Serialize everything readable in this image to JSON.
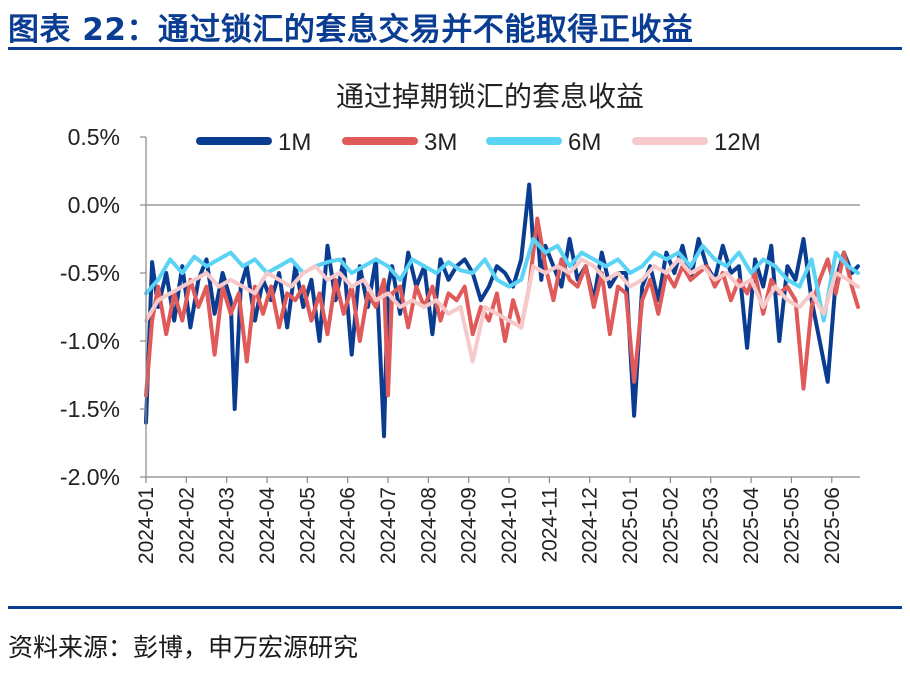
{
  "figure": {
    "title": "图表 22：通过锁汇的套息交易并不能取得正收益",
    "source": "资料来源：彭博，申万宏源研究"
  },
  "chart_data": {
    "type": "line",
    "title": "通过掉期锁汇的套息收益",
    "xlabel": "",
    "ylabel": "",
    "ylim": [
      -2.0,
      0.5
    ],
    "yticks": [
      0.5,
      0.0,
      -0.5,
      -1.0,
      -1.5,
      -2.0
    ],
    "ytick_labels": [
      "0.5%",
      "0.0%",
      "-0.5%",
      "-1.0%",
      "-1.5%",
      "-2.0%"
    ],
    "x_categories": [
      "2024-01",
      "2024-02",
      "2024-03",
      "2024-04",
      "2024-05",
      "2024-06",
      "2024-07",
      "2024-08",
      "2024-09",
      "2024-10",
      "2024-11",
      "2024-12",
      "2025-01",
      "2025-02",
      "2025-03",
      "2025-04",
      "2025-05",
      "2025-06"
    ],
    "xlim_months": [
      0,
      17.7
    ],
    "legend_position": "top",
    "series": [
      {
        "name": "1M",
        "color": "#0a3d91",
        "x": [
          0,
          0.15,
          0.3,
          0.5,
          0.7,
          0.9,
          1.1,
          1.3,
          1.5,
          1.7,
          1.9,
          2.1,
          2.2,
          2.35,
          2.5,
          2.7,
          2.9,
          3.1,
          3.3,
          3.5,
          3.7,
          3.9,
          4.1,
          4.3,
          4.5,
          4.7,
          4.9,
          5.1,
          5.3,
          5.5,
          5.7,
          5.9,
          6.0,
          6.1,
          6.3,
          6.5,
          6.7,
          6.9,
          7.1,
          7.3,
          7.5,
          7.7,
          7.9,
          8.1,
          8.3,
          8.5,
          8.7,
          8.9,
          9.1,
          9.3,
          9.5,
          9.6,
          9.7,
          9.8,
          9.9,
          10.1,
          10.3,
          10.5,
          10.7,
          10.9,
          11.1,
          11.3,
          11.5,
          11.7,
          11.9,
          12.1,
          12.3,
          12.5,
          12.7,
          12.9,
          13.1,
          13.3,
          13.5,
          13.7,
          13.9,
          14.1,
          14.3,
          14.5,
          14.7,
          14.9,
          15.1,
          15.3,
          15.5,
          15.7,
          15.9,
          16.1,
          16.3,
          16.5,
          16.7,
          16.9,
          17.1,
          17.3,
          17.5,
          17.65
        ],
        "values": [
          -1.6,
          -0.42,
          -0.75,
          -0.5,
          -0.85,
          -0.45,
          -0.9,
          -0.55,
          -0.4,
          -0.8,
          -0.5,
          -0.7,
          -1.5,
          -0.6,
          -0.45,
          -0.85,
          -0.55,
          -0.7,
          -0.5,
          -0.9,
          -0.45,
          -0.75,
          -0.55,
          -1.0,
          -0.3,
          -0.7,
          -0.4,
          -1.1,
          -0.45,
          -0.75,
          -0.4,
          -1.7,
          -0.6,
          -0.45,
          -0.8,
          -0.35,
          -0.6,
          -0.45,
          -0.95,
          -0.4,
          -0.55,
          -0.45,
          -0.4,
          -0.5,
          -0.7,
          -0.6,
          -0.45,
          -0.5,
          -0.6,
          -0.4,
          0.15,
          -0.3,
          -0.2,
          -0.55,
          -0.3,
          -0.45,
          -0.6,
          -0.25,
          -0.55,
          -0.45,
          -0.7,
          -0.35,
          -0.6,
          -0.5,
          -0.5,
          -1.55,
          -0.6,
          -0.45,
          -0.7,
          -0.35,
          -0.5,
          -0.3,
          -0.55,
          -0.25,
          -0.45,
          -0.55,
          -0.3,
          -0.5,
          -0.45,
          -1.05,
          -0.4,
          -0.6,
          -0.3,
          -1.0,
          -0.45,
          -0.55,
          -0.25,
          -0.7,
          -1.0,
          -1.3,
          -0.55,
          -0.35,
          -0.5,
          -0.45
        ]
      },
      {
        "name": "3M",
        "color": "#e05a5a",
        "x": [
          0,
          0.15,
          0.3,
          0.5,
          0.7,
          0.9,
          1.1,
          1.3,
          1.5,
          1.7,
          1.9,
          2.1,
          2.3,
          2.5,
          2.7,
          2.9,
          3.1,
          3.3,
          3.5,
          3.7,
          3.9,
          4.1,
          4.3,
          4.5,
          4.7,
          4.9,
          5.1,
          5.3,
          5.5,
          5.7,
          5.9,
          6.0,
          6.1,
          6.3,
          6.5,
          6.7,
          6.9,
          7.1,
          7.3,
          7.5,
          7.7,
          7.9,
          8.1,
          8.3,
          8.5,
          8.7,
          8.9,
          9.1,
          9.3,
          9.5,
          9.7,
          9.9,
          10.1,
          10.3,
          10.5,
          10.7,
          10.9,
          11.1,
          11.3,
          11.5,
          11.7,
          11.9,
          12.1,
          12.3,
          12.5,
          12.7,
          12.9,
          13.1,
          13.3,
          13.5,
          13.7,
          13.9,
          14.1,
          14.3,
          14.5,
          14.7,
          14.9,
          15.1,
          15.3,
          15.5,
          15.7,
          15.9,
          16.1,
          16.3,
          16.5,
          16.7,
          16.9,
          17.1,
          17.3,
          17.5,
          17.65
        ],
        "values": [
          -1.4,
          -0.85,
          -0.6,
          -0.95,
          -0.65,
          -0.85,
          -0.55,
          -0.75,
          -0.6,
          -1.1,
          -0.6,
          -0.8,
          -0.65,
          -1.15,
          -0.6,
          -0.8,
          -0.6,
          -0.9,
          -0.65,
          -0.7,
          -0.6,
          -0.85,
          -0.65,
          -0.95,
          -0.55,
          -0.8,
          -0.6,
          -1.0,
          -0.65,
          -0.75,
          -0.55,
          -1.4,
          -0.65,
          -0.6,
          -0.9,
          -0.6,
          -0.75,
          -0.6,
          -0.85,
          -0.65,
          -0.7,
          -0.6,
          -0.95,
          -0.75,
          -0.85,
          -0.65,
          -1.0,
          -0.7,
          -0.9,
          -0.6,
          -0.1,
          -0.45,
          -0.7,
          -0.4,
          -0.55,
          -0.6,
          -0.45,
          -0.75,
          -0.5,
          -0.95,
          -0.6,
          -0.65,
          -1.3,
          -0.7,
          -0.55,
          -0.8,
          -0.5,
          -0.6,
          -0.45,
          -0.55,
          -0.5,
          -0.45,
          -0.6,
          -0.5,
          -0.7,
          -0.55,
          -0.65,
          -0.5,
          -0.8,
          -0.55,
          -0.65,
          -0.6,
          -0.7,
          -1.35,
          -0.75,
          -0.55,
          -0.4,
          -0.65,
          -0.35,
          -0.6,
          -0.75
        ]
      },
      {
        "name": "6M",
        "color": "#5bd3f5",
        "x": [
          0,
          0.3,
          0.6,
          0.9,
          1.2,
          1.5,
          1.8,
          2.1,
          2.4,
          2.7,
          3.0,
          3.3,
          3.6,
          3.9,
          4.2,
          4.5,
          4.8,
          5.1,
          5.4,
          5.7,
          6.0,
          6.3,
          6.6,
          6.9,
          7.2,
          7.5,
          7.8,
          8.1,
          8.4,
          8.7,
          9.0,
          9.3,
          9.6,
          9.9,
          10.2,
          10.5,
          10.8,
          11.1,
          11.4,
          11.7,
          12.0,
          12.3,
          12.6,
          12.9,
          13.2,
          13.5,
          13.8,
          14.1,
          14.4,
          14.7,
          15.0,
          15.3,
          15.6,
          15.9,
          16.2,
          16.5,
          16.8,
          17.1,
          17.4,
          17.65
        ],
        "values": [
          -0.65,
          -0.55,
          -0.4,
          -0.5,
          -0.38,
          -0.45,
          -0.4,
          -0.35,
          -0.45,
          -0.4,
          -0.5,
          -0.45,
          -0.4,
          -0.5,
          -0.45,
          -0.42,
          -0.4,
          -0.5,
          -0.45,
          -0.4,
          -0.45,
          -0.55,
          -0.4,
          -0.45,
          -0.5,
          -0.42,
          -0.48,
          -0.5,
          -0.4,
          -0.55,
          -0.6,
          -0.55,
          -0.25,
          -0.35,
          -0.3,
          -0.45,
          -0.35,
          -0.4,
          -0.45,
          -0.4,
          -0.5,
          -0.45,
          -0.35,
          -0.4,
          -0.35,
          -0.45,
          -0.3,
          -0.4,
          -0.45,
          -0.35,
          -0.5,
          -0.4,
          -0.45,
          -0.55,
          -0.6,
          -0.4,
          -0.85,
          -0.35,
          -0.45,
          -0.5
        ]
      },
      {
        "name": "12M",
        "color": "#f6caca",
        "x": [
          0,
          0.3,
          0.6,
          0.9,
          1.2,
          1.5,
          1.8,
          2.1,
          2.4,
          2.7,
          3.0,
          3.3,
          3.6,
          3.9,
          4.2,
          4.5,
          4.8,
          5.1,
          5.4,
          5.7,
          6.0,
          6.3,
          6.6,
          6.9,
          7.2,
          7.5,
          7.8,
          8.1,
          8.4,
          8.7,
          9.0,
          9.3,
          9.6,
          9.9,
          10.2,
          10.5,
          10.8,
          11.1,
          11.4,
          11.7,
          12.0,
          12.3,
          12.6,
          12.9,
          13.2,
          13.5,
          13.8,
          14.1,
          14.4,
          14.7,
          15.0,
          15.3,
          15.6,
          15.9,
          16.2,
          16.5,
          16.8,
          17.1,
          17.4,
          17.65
        ],
        "values": [
          -0.85,
          -0.7,
          -0.65,
          -0.6,
          -0.55,
          -0.5,
          -0.6,
          -0.55,
          -0.6,
          -0.65,
          -0.5,
          -0.55,
          -0.6,
          -0.5,
          -0.45,
          -0.55,
          -0.5,
          -0.6,
          -0.55,
          -0.7,
          -0.65,
          -0.75,
          -0.7,
          -0.75,
          -0.7,
          -0.8,
          -0.75,
          -1.15,
          -0.75,
          -0.8,
          -0.85,
          -0.9,
          -0.45,
          -0.5,
          -0.45,
          -0.5,
          -0.4,
          -0.45,
          -0.55,
          -0.5,
          -0.6,
          -0.55,
          -0.45,
          -0.5,
          -0.4,
          -0.5,
          -0.45,
          -0.55,
          -0.5,
          -0.6,
          -0.55,
          -0.75,
          -0.6,
          -0.7,
          -0.75,
          -0.65,
          -0.8,
          -0.5,
          -0.55,
          -0.6
        ]
      }
    ]
  }
}
